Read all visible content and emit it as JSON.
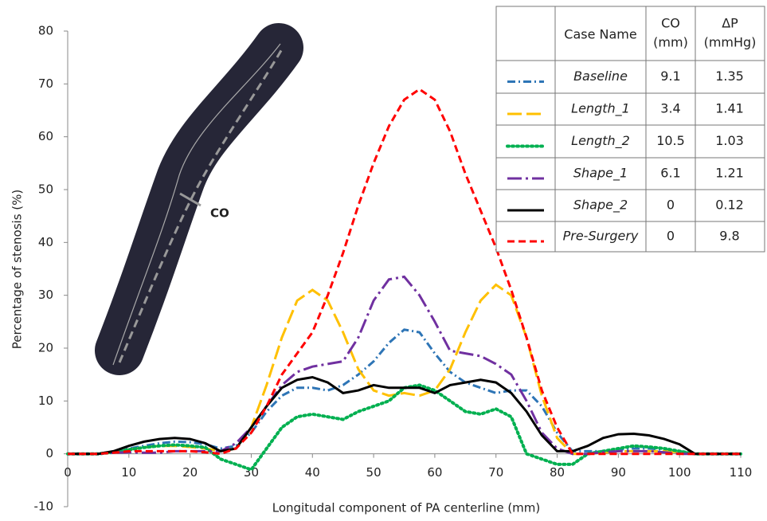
{
  "chart_data": {
    "type": "line",
    "y_label": "Percentage of stenosis (%)",
    "x_label": "Longitudal component of PA centerline (mm)",
    "annotations": [
      "CO"
    ],
    "xlim": [
      0,
      110
    ],
    "ylim": [
      -10,
      80
    ],
    "xticks": [
      0,
      10,
      20,
      30,
      40,
      50,
      60,
      70,
      80,
      90,
      100,
      110
    ],
    "yticks": [
      -10,
      0,
      10,
      20,
      30,
      40,
      50,
      60,
      70,
      80
    ],
    "table_headers": [
      "Case Name",
      [
        "CO",
        "(mm)"
      ],
      [
        "ΔP",
        "(mmHg)"
      ]
    ],
    "x": [
      0,
      2.5,
      5,
      7.5,
      10,
      12.5,
      15,
      17.5,
      20,
      22.5,
      25,
      27.5,
      30,
      32.5,
      35,
      37.5,
      40,
      42.5,
      45,
      47.5,
      50,
      52.5,
      55,
      57.5,
      60,
      62.5,
      65,
      67.5,
      70,
      72.5,
      75,
      77.5,
      80,
      82.5,
      85,
      87.5,
      90,
      92.5,
      95,
      97.5,
      100,
      102.5,
      105,
      107.5,
      110
    ],
    "series": [
      {
        "name": "Baseline",
        "color": "#2e75b6",
        "dash": "10 4 2 4",
        "co": 9.1,
        "dp": 1.35,
        "values": [
          0,
          0,
          0,
          0.5,
          1,
          1.5,
          2,
          2.3,
          2.2,
          1.8,
          1,
          1.5,
          4,
          8,
          11,
          12.5,
          12.5,
          12,
          13,
          15,
          17.5,
          21,
          23.5,
          23,
          19,
          15.5,
          13.5,
          12.5,
          11.5,
          12,
          12,
          9,
          4,
          0.5,
          0.5,
          0.5,
          0.8,
          1,
          1,
          0.8,
          0.5,
          0,
          0,
          0,
          0
        ]
      },
      {
        "name": "Length_1",
        "color": "#ffc000",
        "dash": "18 6",
        "co": 3.4,
        "dp": 1.41,
        "values": [
          0,
          0,
          0,
          0.3,
          0.8,
          1.2,
          1.5,
          1.5,
          1.3,
          1,
          0.5,
          1,
          5,
          13,
          22,
          29,
          31,
          29,
          23,
          16,
          12,
          11,
          11.5,
          11,
          12,
          16,
          23,
          29,
          32,
          30,
          22,
          11,
          3,
          0,
          0,
          0.2,
          0.5,
          0.5,
          0.5,
          0.5,
          0.3,
          0,
          0,
          0,
          0
        ]
      },
      {
        "name": "Length_2",
        "color": "#00b050",
        "dash": "2 4",
        "co": 10.5,
        "dp": 1.03,
        "values": [
          0,
          0,
          0,
          0.3,
          0.8,
          1.2,
          1.5,
          1.7,
          1.5,
          1.2,
          -1,
          -2,
          -3,
          1,
          5,
          7,
          7.5,
          7,
          6.5,
          8,
          9,
          10,
          12.5,
          13,
          12,
          10,
          8,
          7.5,
          8.5,
          7,
          0,
          -1,
          -2,
          -2,
          0,
          0.5,
          1,
          1.5,
          1.3,
          1,
          0.5,
          0,
          0,
          0,
          0
        ]
      },
      {
        "name": "Shape_1",
        "color": "#7030a0",
        "dash": "18 5 3 5",
        "co": 6.1,
        "dp": 1.21,
        "values": [
          0,
          0,
          0,
          0.2,
          0.3,
          0.2,
          0.2,
          0.5,
          0.5,
          0.5,
          0.5,
          2,
          5,
          9,
          13,
          15.5,
          16.5,
          17,
          17.5,
          22,
          29,
          33,
          33.5,
          30,
          25,
          19.5,
          19,
          18.5,
          17,
          15,
          10,
          4,
          1,
          0,
          0,
          0.3,
          0.5,
          0.5,
          0.5,
          0.3,
          0,
          0,
          0,
          0,
          0
        ]
      },
      {
        "name": "Shape_2",
        "color": "#000000",
        "dash": "none",
        "co": 0,
        "dp": 0.12,
        "values": [
          0,
          0,
          0,
          0.5,
          1.5,
          2.3,
          2.8,
          3,
          2.8,
          2,
          0.5,
          1,
          5,
          9,
          12.5,
          14,
          14.5,
          13.5,
          11.5,
          12,
          13,
          12.5,
          12.5,
          12.5,
          11.5,
          13,
          13.5,
          14,
          13.5,
          11.5,
          8,
          3.5,
          0.5,
          0.5,
          1.5,
          3,
          3.7,
          3.8,
          3.5,
          2.8,
          1.8,
          0,
          0,
          0,
          0
        ]
      },
      {
        "name": "Pre-Surgery",
        "color": "#ff0000",
        "dash": "9 5",
        "co": 0,
        "dp": 9.8,
        "values": [
          0,
          0,
          0,
          0.2,
          0.5,
          0.5,
          0.5,
          0.5,
          0.5,
          0.3,
          0,
          1,
          4,
          9,
          15,
          19,
          23,
          30,
          38,
          47,
          55,
          62,
          67,
          69,
          67,
          61,
          53,
          46,
          39,
          31,
          22,
          12,
          5,
          0,
          0,
          0,
          0,
          0,
          0,
          0,
          0,
          0,
          0,
          0,
          0
        ]
      }
    ]
  }
}
